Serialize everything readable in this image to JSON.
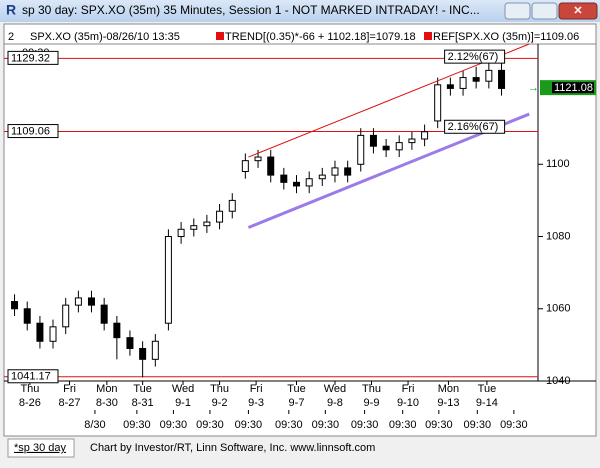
{
  "window": {
    "title": "sp 30 day: SPX.XO (35m) 35 Minutes, Session 1 - NOT MARKED INTRADAY! - INC..."
  },
  "header": {
    "number": "2",
    "symbol": "SPX.XO (35m)-08/26/10 13:35",
    "trend": "TREND[(0.35)*-66 + 1102.18]=1079.18",
    "ref": "REF[SPX.XO (35m)]=1109.06",
    "start_time": "09:30"
  },
  "chart_data": {
    "type": "candlestick",
    "x": [
      0.17,
      0.5,
      0.83,
      1.17,
      1.5,
      1.83,
      2.17,
      2.5,
      2.83,
      3.17,
      3.5,
      3.83,
      4.17,
      4.5,
      4.83,
      5.17,
      5.5,
      5.83,
      6.17,
      6.5,
      6.83,
      7.17,
      7.5,
      7.83,
      8.17,
      8.5,
      8.83,
      9.17,
      9.5,
      9.83,
      10.17,
      10.5,
      10.83,
      11.17,
      11.5,
      11.83,
      12.17,
      12.5,
      12.83
    ],
    "open": [
      1062,
      1060,
      1056,
      1051,
      1055,
      1061,
      1063,
      1061,
      1056,
      1052,
      1049,
      1046,
      1056,
      1080,
      1082,
      1083,
      1084,
      1087,
      1098,
      1101,
      1102,
      1097,
      1095,
      1094,
      1096,
      1097,
      1099,
      1100,
      1108,
      1105,
      1104,
      1106,
      1107,
      1112,
      1122,
      1121,
      1124,
      1123,
      1126
    ],
    "high": [
      1064,
      1062,
      1058,
      1057,
      1063,
      1065,
      1065,
      1063,
      1058,
      1054,
      1051,
      1053,
      1082,
      1084,
      1085,
      1086,
      1089,
      1092,
      1103,
      1104,
      1104,
      1099,
      1097,
      1098,
      1099,
      1101,
      1101,
      1110,
      1110,
      1107,
      1108,
      1109,
      1111,
      1124,
      1124,
      1126,
      1127,
      1128,
      1128
    ],
    "low": [
      1058,
      1054,
      1049,
      1049,
      1053,
      1059,
      1059,
      1054,
      1046,
      1047,
      1041,
      1044,
      1054,
      1078,
      1080,
      1081,
      1082,
      1085,
      1096,
      1099,
      1095,
      1093,
      1092,
      1092,
      1094,
      1095,
      1095,
      1098,
      1103,
      1102,
      1102,
      1104,
      1105,
      1110,
      1119,
      1119,
      1121,
      1121,
      1119
    ],
    "close": [
      1060,
      1056,
      1051,
      1055,
      1061,
      1063,
      1061,
      1056,
      1052,
      1049,
      1046,
      1051,
      1080,
      1082,
      1083,
      1084,
      1087,
      1090,
      1101,
      1102,
      1097,
      1095,
      1094,
      1096,
      1097,
      1099,
      1097,
      1108,
      1105,
      1104,
      1106,
      1107,
      1109,
      1122,
      1121,
      1124,
      1123,
      1126,
      1121
    ],
    "xlim": [
      0,
      13.7
    ],
    "ylim": [
      1040,
      1133.3
    ],
    "yticks": [
      1040,
      1060,
      1080,
      1100
    ],
    "xticks": [
      {
        "value": 0.57,
        "label": "Thu",
        "date": "8-26"
      },
      {
        "value": 1.6,
        "label": "Fri",
        "date": "8-27"
      },
      {
        "value": 2.57,
        "label": "Mon",
        "date": "8-30"
      },
      {
        "value": 3.5,
        "label": "Tue",
        "date": "8-31"
      },
      {
        "value": 4.55,
        "label": "Wed",
        "date": "9-1"
      },
      {
        "value": 5.5,
        "label": "Thu",
        "date": "9-2"
      },
      {
        "value": 6.45,
        "label": "Fri",
        "date": "9-3"
      },
      {
        "value": 7.5,
        "label": "Tue",
        "date": "9-7"
      },
      {
        "value": 8.5,
        "label": "Wed",
        "date": "9-8"
      },
      {
        "value": 9.45,
        "label": "Thu",
        "date": "9-9"
      },
      {
        "value": 10.4,
        "label": "Fri",
        "date": "9-10"
      },
      {
        "value": 11.45,
        "label": "Mon",
        "date": "9-13"
      },
      {
        "value": 12.45,
        "label": "Tue",
        "date": "9-14"
      }
    ],
    "time_ticks": [
      {
        "value": 2.26,
        "label": "8/30"
      },
      {
        "value": 3.35,
        "label": "09:30"
      },
      {
        "value": 4.3,
        "label": "09:30"
      },
      {
        "value": 5.25,
        "label": "09:30"
      },
      {
        "value": 6.25,
        "label": "09:30"
      },
      {
        "value": 7.3,
        "label": "09:30"
      },
      {
        "value": 8.25,
        "label": "09:30"
      },
      {
        "value": 9.27,
        "label": "09:30"
      },
      {
        "value": 10.26,
        "label": "09:30"
      },
      {
        "value": 11.2,
        "label": "09:30"
      },
      {
        "value": 12.2,
        "label": "09:30"
      },
      {
        "value": 13.15,
        "label": "09:30"
      }
    ],
    "ref_lines": [
      1129.32,
      1109.06,
      1041.17
    ],
    "ref_color": "#e01010",
    "trend_lines": [
      {
        "x": [
          6.25,
          13.55
        ],
        "values": [
          1102,
          1133.3
        ],
        "color": "#e01010",
        "label": "2.12%(67)"
      },
      {
        "x": [
          6.25,
          13.55
        ],
        "values": [
          1082.5,
          1113.9
        ],
        "color": "#9b7be8",
        "label": "2.16%(67)"
      }
    ],
    "last_price": 1121.08
  },
  "footer": {
    "tab": "*sp 30 day",
    "credit": "Chart by Investor/RT, Linn Software, Inc. www.linnsoft.com"
  }
}
